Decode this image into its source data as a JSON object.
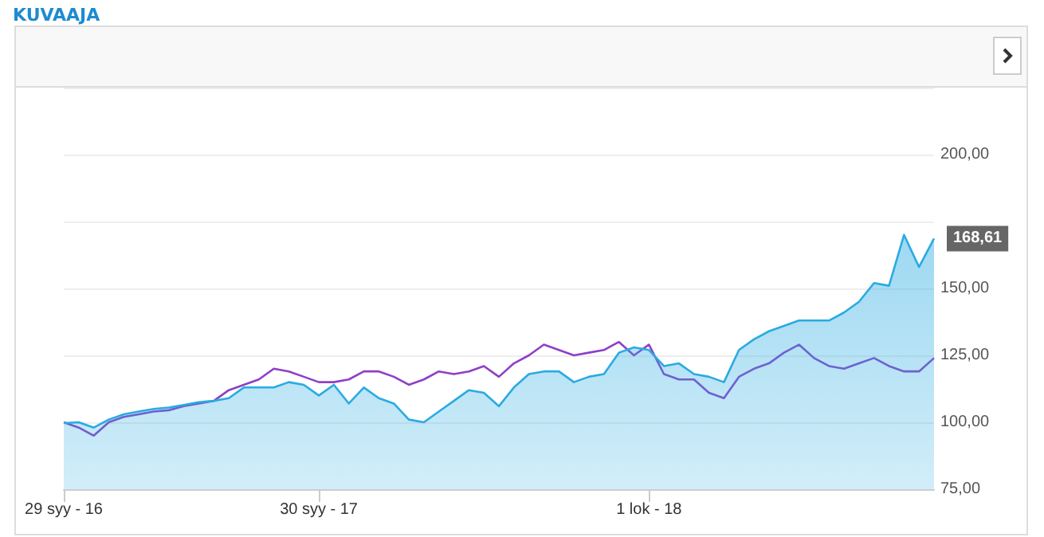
{
  "chart_data": {
    "type": "line",
    "title": "KUVAAJA",
    "categories": [
      "29 syy - 16",
      null,
      null,
      null,
      null,
      null,
      null,
      null,
      null,
      null,
      null,
      null,
      null,
      null,
      null,
      null,
      null,
      "30 syy - 17",
      null,
      null,
      null,
      null,
      null,
      null,
      null,
      null,
      null,
      null,
      null,
      null,
      null,
      null,
      null,
      null,
      null,
      null,
      null,
      null,
      null,
      "1 lok - 18",
      null,
      null,
      null,
      null,
      null,
      null,
      null,
      null,
      null,
      null,
      null,
      null,
      null,
      null,
      null,
      null,
      null,
      null,
      null
    ],
    "series": [
      {
        "type": "area",
        "color": "#29abe2",
        "values": [
          99.7,
          100,
          98,
          101,
          103,
          104,
          105,
          105.5,
          106.5,
          107.5,
          108,
          109,
          113,
          113,
          113,
          115,
          114,
          110,
          114,
          107,
          113,
          109,
          107,
          101,
          100,
          104,
          108,
          112,
          111,
          106,
          113,
          118,
          119,
          119,
          115,
          117,
          118,
          126,
          128,
          127,
          121,
          122,
          118,
          117,
          115,
          127,
          131,
          134,
          136,
          138,
          138,
          138,
          141,
          145,
          152,
          151,
          170,
          158,
          168.61
        ],
        "value_labels": [
          null,
          null,
          null,
          null,
          null,
          null,
          null,
          null,
          null,
          null,
          null,
          null,
          null,
          null,
          null,
          null,
          null,
          null,
          null,
          null,
          null,
          null,
          null,
          null,
          null,
          null,
          null,
          null,
          null,
          null,
          null,
          null,
          null,
          null,
          null,
          null,
          null,
          null,
          null,
          null,
          null,
          null,
          null,
          null,
          null,
          null,
          null,
          null,
          null,
          null,
          null,
          null,
          null,
          null,
          null,
          null,
          null,
          null,
          "168,61"
        ]
      },
      {
        "color": "#8e3fc6",
        "values": [
          100,
          98,
          95,
          100,
          102,
          103,
          104,
          104.5,
          106,
          107,
          108,
          112,
          114,
          116,
          120,
          119,
          117,
          115,
          115,
          116,
          119,
          119,
          117,
          114,
          116,
          119,
          118,
          119,
          121,
          117,
          122,
          125,
          129,
          127,
          125,
          126,
          127,
          130,
          125,
          129,
          118,
          116,
          116,
          111,
          109,
          117,
          120,
          122,
          126,
          129,
          124,
          121,
          120,
          122,
          124,
          121,
          119,
          119,
          124
        ]
      }
    ],
    "ylim": [
      75,
      225
    ],
    "yticks": [
      {
        "value": 75,
        "label": "75,00"
      },
      {
        "value": 100,
        "label": "100,00"
      },
      {
        "value": 125,
        "label": "125,00"
      },
      {
        "value": 150,
        "label": "150,00"
      },
      {
        "value": 175,
        "label": null
      },
      {
        "value": 200,
        "label": "200,00"
      },
      {
        "value": 225,
        "label": null
      }
    ],
    "grid": "y",
    "marker": "none",
    "line_style": "solid"
  }
}
